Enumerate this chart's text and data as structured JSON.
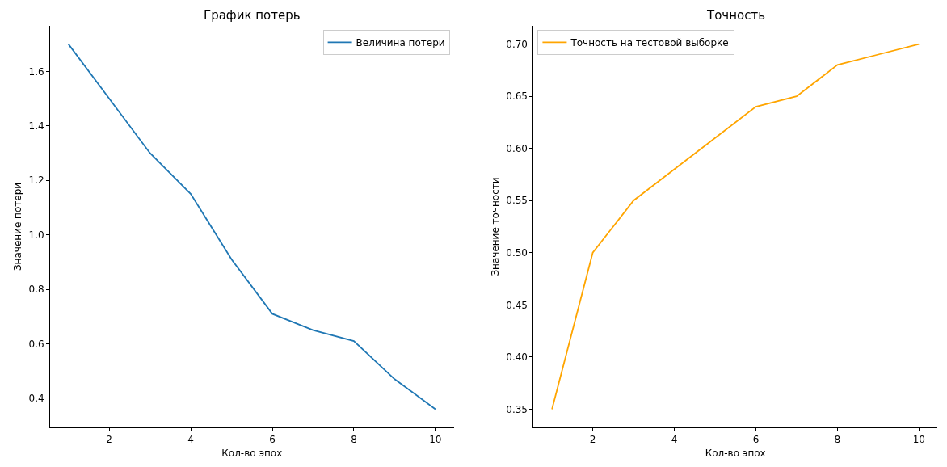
{
  "chart_data": [
    {
      "type": "line",
      "title": "График потерь",
      "xlabel": "Кол-во эпох",
      "ylabel": "Значение потери",
      "x": [
        1,
        2,
        3,
        4,
        5,
        6,
        7,
        8,
        9,
        10
      ],
      "series": [
        {
          "name": "Величина потери",
          "color": "#1f77b4",
          "values": [
            1.7,
            1.5,
            1.3,
            1.15,
            0.91,
            0.71,
            0.65,
            0.61,
            0.47,
            0.36
          ]
        }
      ],
      "xlim": [
        0.55,
        10.45
      ],
      "xticks": [
        2,
        4,
        6,
        8,
        10
      ],
      "ylim": [
        0.293,
        1.767
      ],
      "yticks": [
        {
          "value": 0.4,
          "label": "0.4"
        },
        {
          "value": 0.6,
          "label": "0.6"
        },
        {
          "value": 0.8,
          "label": "0.8"
        },
        {
          "value": 1.0,
          "label": "1.0"
        },
        {
          "value": 1.2,
          "label": "1.2"
        },
        {
          "value": 1.4,
          "label": "1.4"
        },
        {
          "value": 1.6,
          "label": "1.6"
        }
      ],
      "legend": "top right"
    },
    {
      "type": "line",
      "title": "Точность",
      "xlabel": "Кол-во эпох",
      "ylabel": "Значение точности",
      "x": [
        1,
        2,
        3,
        4,
        5,
        6,
        7,
        8,
        9,
        10
      ],
      "series": [
        {
          "name": "Точность на тестовой выборке",
          "color": "#ffa500",
          "values": [
            0.35,
            0.5,
            0.55,
            0.58,
            0.61,
            0.64,
            0.65,
            0.68,
            0.69,
            0.7
          ]
        }
      ],
      "xlim": [
        0.55,
        10.45
      ],
      "xticks": [
        2,
        4,
        6,
        8,
        10
      ],
      "ylim": [
        0.3325,
        0.7175
      ],
      "yticks": [
        {
          "value": 0.35,
          "label": "0.35"
        },
        {
          "value": 0.4,
          "label": "0.40"
        },
        {
          "value": 0.45,
          "label": "0.45"
        },
        {
          "value": 0.5,
          "label": "0.50"
        },
        {
          "value": 0.55,
          "label": "0.55"
        },
        {
          "value": 0.6,
          "label": "0.60"
        },
        {
          "value": 0.65,
          "label": "0.65"
        },
        {
          "value": 0.7,
          "label": "0.70"
        }
      ],
      "legend": "top left"
    }
  ]
}
